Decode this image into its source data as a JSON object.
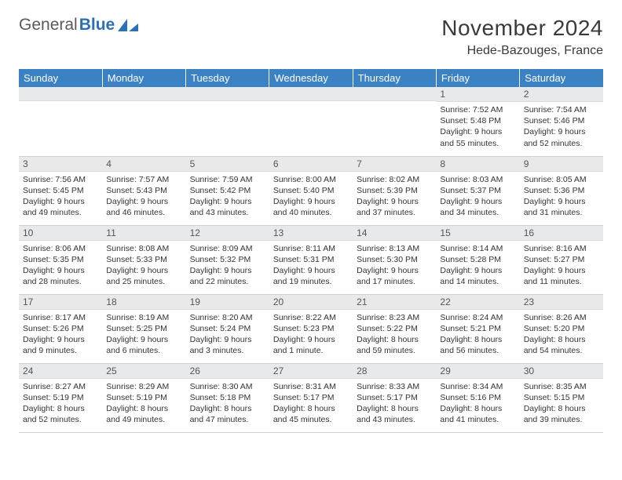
{
  "brand": {
    "part1": "General",
    "part2": "Blue"
  },
  "title": "November 2024",
  "location": "Hede-Bazouges, France",
  "colors": {
    "header_bg": "#3b82c4",
    "header_text": "#ffffff",
    "daynum_bg": "#e8e9ea",
    "logo_gray": "#5a5a5a",
    "logo_blue": "#2d6fb5"
  },
  "day_labels": [
    "Sunday",
    "Monday",
    "Tuesday",
    "Wednesday",
    "Thursday",
    "Friday",
    "Saturday"
  ],
  "weeks": [
    [
      {
        "n": "",
        "sr": "",
        "ss": "",
        "dl": ""
      },
      {
        "n": "",
        "sr": "",
        "ss": "",
        "dl": ""
      },
      {
        "n": "",
        "sr": "",
        "ss": "",
        "dl": ""
      },
      {
        "n": "",
        "sr": "",
        "ss": "",
        "dl": ""
      },
      {
        "n": "",
        "sr": "",
        "ss": "",
        "dl": ""
      },
      {
        "n": "1",
        "sr": "Sunrise: 7:52 AM",
        "ss": "Sunset: 5:48 PM",
        "dl": "Daylight: 9 hours and 55 minutes."
      },
      {
        "n": "2",
        "sr": "Sunrise: 7:54 AM",
        "ss": "Sunset: 5:46 PM",
        "dl": "Daylight: 9 hours and 52 minutes."
      }
    ],
    [
      {
        "n": "3",
        "sr": "Sunrise: 7:56 AM",
        "ss": "Sunset: 5:45 PM",
        "dl": "Daylight: 9 hours and 49 minutes."
      },
      {
        "n": "4",
        "sr": "Sunrise: 7:57 AM",
        "ss": "Sunset: 5:43 PM",
        "dl": "Daylight: 9 hours and 46 minutes."
      },
      {
        "n": "5",
        "sr": "Sunrise: 7:59 AM",
        "ss": "Sunset: 5:42 PM",
        "dl": "Daylight: 9 hours and 43 minutes."
      },
      {
        "n": "6",
        "sr": "Sunrise: 8:00 AM",
        "ss": "Sunset: 5:40 PM",
        "dl": "Daylight: 9 hours and 40 minutes."
      },
      {
        "n": "7",
        "sr": "Sunrise: 8:02 AM",
        "ss": "Sunset: 5:39 PM",
        "dl": "Daylight: 9 hours and 37 minutes."
      },
      {
        "n": "8",
        "sr": "Sunrise: 8:03 AM",
        "ss": "Sunset: 5:37 PM",
        "dl": "Daylight: 9 hours and 34 minutes."
      },
      {
        "n": "9",
        "sr": "Sunrise: 8:05 AM",
        "ss": "Sunset: 5:36 PM",
        "dl": "Daylight: 9 hours and 31 minutes."
      }
    ],
    [
      {
        "n": "10",
        "sr": "Sunrise: 8:06 AM",
        "ss": "Sunset: 5:35 PM",
        "dl": "Daylight: 9 hours and 28 minutes."
      },
      {
        "n": "11",
        "sr": "Sunrise: 8:08 AM",
        "ss": "Sunset: 5:33 PM",
        "dl": "Daylight: 9 hours and 25 minutes."
      },
      {
        "n": "12",
        "sr": "Sunrise: 8:09 AM",
        "ss": "Sunset: 5:32 PM",
        "dl": "Daylight: 9 hours and 22 minutes."
      },
      {
        "n": "13",
        "sr": "Sunrise: 8:11 AM",
        "ss": "Sunset: 5:31 PM",
        "dl": "Daylight: 9 hours and 19 minutes."
      },
      {
        "n": "14",
        "sr": "Sunrise: 8:13 AM",
        "ss": "Sunset: 5:30 PM",
        "dl": "Daylight: 9 hours and 17 minutes."
      },
      {
        "n": "15",
        "sr": "Sunrise: 8:14 AM",
        "ss": "Sunset: 5:28 PM",
        "dl": "Daylight: 9 hours and 14 minutes."
      },
      {
        "n": "16",
        "sr": "Sunrise: 8:16 AM",
        "ss": "Sunset: 5:27 PM",
        "dl": "Daylight: 9 hours and 11 minutes."
      }
    ],
    [
      {
        "n": "17",
        "sr": "Sunrise: 8:17 AM",
        "ss": "Sunset: 5:26 PM",
        "dl": "Daylight: 9 hours and 9 minutes."
      },
      {
        "n": "18",
        "sr": "Sunrise: 8:19 AM",
        "ss": "Sunset: 5:25 PM",
        "dl": "Daylight: 9 hours and 6 minutes."
      },
      {
        "n": "19",
        "sr": "Sunrise: 8:20 AM",
        "ss": "Sunset: 5:24 PM",
        "dl": "Daylight: 9 hours and 3 minutes."
      },
      {
        "n": "20",
        "sr": "Sunrise: 8:22 AM",
        "ss": "Sunset: 5:23 PM",
        "dl": "Daylight: 9 hours and 1 minute."
      },
      {
        "n": "21",
        "sr": "Sunrise: 8:23 AM",
        "ss": "Sunset: 5:22 PM",
        "dl": "Daylight: 8 hours and 59 minutes."
      },
      {
        "n": "22",
        "sr": "Sunrise: 8:24 AM",
        "ss": "Sunset: 5:21 PM",
        "dl": "Daylight: 8 hours and 56 minutes."
      },
      {
        "n": "23",
        "sr": "Sunrise: 8:26 AM",
        "ss": "Sunset: 5:20 PM",
        "dl": "Daylight: 8 hours and 54 minutes."
      }
    ],
    [
      {
        "n": "24",
        "sr": "Sunrise: 8:27 AM",
        "ss": "Sunset: 5:19 PM",
        "dl": "Daylight: 8 hours and 52 minutes."
      },
      {
        "n": "25",
        "sr": "Sunrise: 8:29 AM",
        "ss": "Sunset: 5:19 PM",
        "dl": "Daylight: 8 hours and 49 minutes."
      },
      {
        "n": "26",
        "sr": "Sunrise: 8:30 AM",
        "ss": "Sunset: 5:18 PM",
        "dl": "Daylight: 8 hours and 47 minutes."
      },
      {
        "n": "27",
        "sr": "Sunrise: 8:31 AM",
        "ss": "Sunset: 5:17 PM",
        "dl": "Daylight: 8 hours and 45 minutes."
      },
      {
        "n": "28",
        "sr": "Sunrise: 8:33 AM",
        "ss": "Sunset: 5:17 PM",
        "dl": "Daylight: 8 hours and 43 minutes."
      },
      {
        "n": "29",
        "sr": "Sunrise: 8:34 AM",
        "ss": "Sunset: 5:16 PM",
        "dl": "Daylight: 8 hours and 41 minutes."
      },
      {
        "n": "30",
        "sr": "Sunrise: 8:35 AM",
        "ss": "Sunset: 5:15 PM",
        "dl": "Daylight: 8 hours and 39 minutes."
      }
    ]
  ]
}
